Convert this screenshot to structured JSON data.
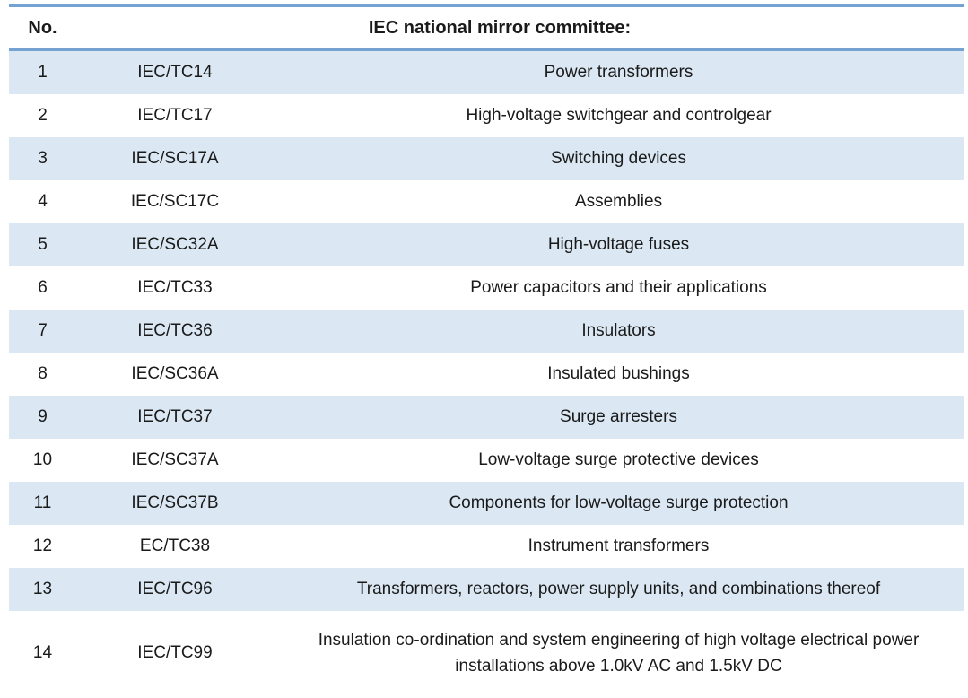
{
  "table": {
    "header": {
      "no_label": "No.",
      "title": "IEC national mirror committee:"
    },
    "rows": [
      {
        "no": "1",
        "code": "IEC/TC14",
        "name": "Power transformers"
      },
      {
        "no": "2",
        "code": "IEC/TC17",
        "name": "High-voltage switchgear and controlgear"
      },
      {
        "no": "3",
        "code": "IEC/SC17A",
        "name": "Switching devices"
      },
      {
        "no": "4",
        "code": "IEC/SC17C",
        "name": "Assemblies"
      },
      {
        "no": "5",
        "code": "IEC/SC32A",
        "name": "High-voltage fuses"
      },
      {
        "no": "6",
        "code": "IEC/TC33",
        "name": "Power capacitors and their applications"
      },
      {
        "no": "7",
        "code": "IEC/TC36",
        "name": "Insulators"
      },
      {
        "no": "8",
        "code": "IEC/SC36A",
        "name": "Insulated bushings"
      },
      {
        "no": "9",
        "code": "IEC/TC37",
        "name": "Surge arresters"
      },
      {
        "no": "10",
        "code": "IEC/SC37A",
        "name": "Low-voltage surge protective devices"
      },
      {
        "no": "11",
        "code": "IEC/SC37B",
        "name": "Components for low-voltage surge protection"
      },
      {
        "no": "12",
        "code": "EC/TC38",
        "name": "Instrument transformers"
      },
      {
        "no": "13",
        "code": "IEC/TC96",
        "name": "Transformers, reactors, power supply units, and combinations thereof"
      },
      {
        "no": "14",
        "code": "IEC/TC99",
        "name": "Insulation co-ordination and system engineering of high voltage electrical power installations above 1.0kV AC and 1.5kV DC"
      }
    ],
    "colors": {
      "stripe": "#dbe8f4",
      "rule": "#74a3d1",
      "text": "#1a1a1a"
    }
  }
}
